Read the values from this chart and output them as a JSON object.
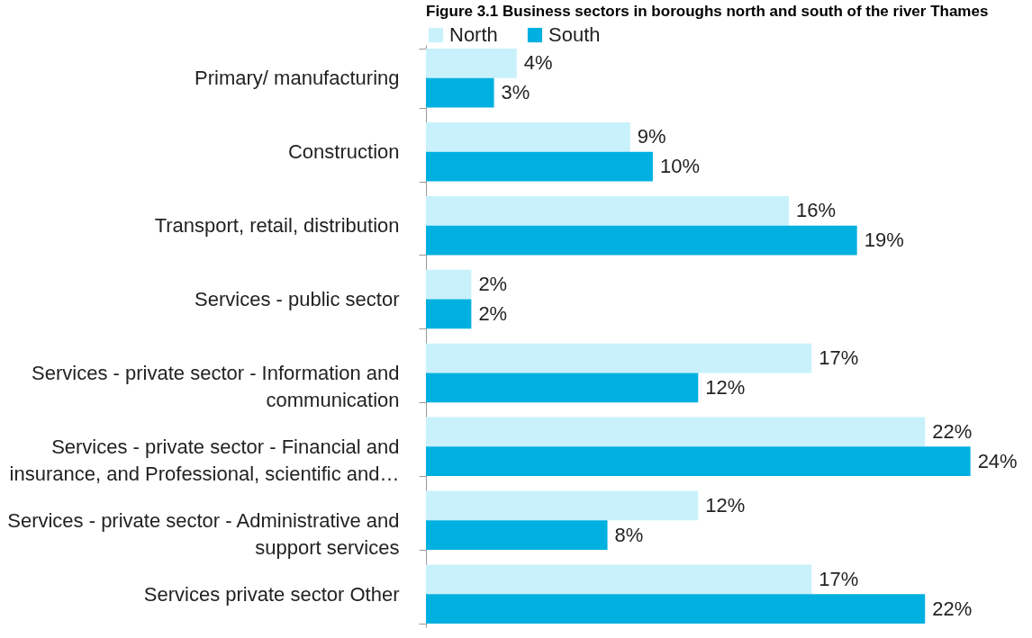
{
  "chart_data": {
    "type": "bar",
    "orientation": "horizontal",
    "title": "Figure 3.1 Business sectors in boroughs north and south of the river Thames",
    "categories": [
      "Primary/ manufacturing",
      "Construction",
      "Transport, retail, distribution",
      "Services - public sector",
      "Services - private sector - Information and communication",
      "Services - private sector - Financial and insurance, and Professional, scientific and…",
      "Services - private sector - Administrative and support services",
      "Services private sector Other"
    ],
    "series": [
      {
        "name": "North",
        "color": "#c9f1fc",
        "values": [
          4,
          9,
          16,
          2,
          17,
          22,
          12,
          17
        ],
        "value_labels": [
          "4%",
          "9%",
          "16%",
          "2%",
          "17%",
          "22%",
          "12%",
          "17%"
        ]
      },
      {
        "name": "South",
        "color": "#00b0e0",
        "values": [
          3,
          10,
          19,
          2,
          12,
          24,
          8,
          22
        ],
        "value_labels": [
          "3%",
          "10%",
          "19%",
          "2%",
          "12%",
          "24%",
          "8%",
          "22%"
        ]
      }
    ],
    "legend": "top",
    "grid": false
  }
}
